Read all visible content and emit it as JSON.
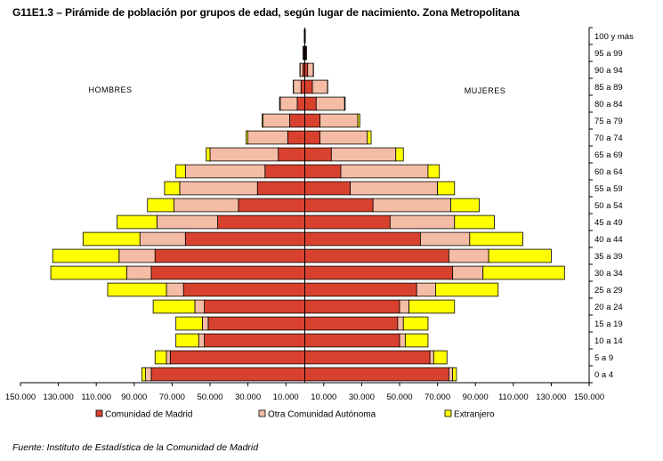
{
  "title": "G11E1.3 – Pirámide de población por grupos de edad, según lugar de nacimiento.  Zona Metropolitana",
  "source": "Fuente: Instituto de Estadística de la Comunidad de Madrid",
  "chart_data": {
    "type": "bar",
    "orientation": "horizontal-population-pyramid",
    "side_labels": {
      "left": "HOMBRES",
      "right": "MUJERES"
    },
    "categories": [
      "0 a 4",
      "5 a 9",
      "10 a 14",
      "15 a 19",
      "20 a 24",
      "25 a 29",
      "30 a 34",
      "35 a 39",
      "40 a 44",
      "45 a 49",
      "50 a 54",
      "55 a 59",
      "60 a 64",
      "65 a 69",
      "70 a 74",
      "75 a 79",
      "80 a 84",
      "85 a 89",
      "90 a 94",
      "95 a 99",
      "100 y más"
    ],
    "x_ticks": [
      "150.000",
      "130.000",
      "110.000",
      "90.000",
      "70.000",
      "50.000",
      "30.000",
      "10.000",
      "10.000",
      "30.000",
      "50.000",
      "70.000",
      "90.000",
      "110.000",
      "130.000",
      "150.000"
    ],
    "xlim": [
      -150000,
      150000
    ],
    "stacked": true,
    "series_colors": [
      "#D9412F",
      "#F5BCA5",
      "#FFFF00"
    ],
    "legend": [
      "Comunidad de Madrid",
      "Otra Comunidad Autónoma",
      "Extranjero"
    ],
    "men": [
      {
        "name": "Comunidad de Madrid",
        "values": [
          81000,
          71000,
          53000,
          51000,
          53000,
          64000,
          81000,
          79000,
          63000,
          46000,
          35000,
          25000,
          21000,
          14000,
          9000,
          8000,
          4000,
          2000,
          1000,
          500,
          200
        ]
      },
      {
        "name": "Otra Comunidad Autónoma",
        "values": [
          3000,
          2000,
          3000,
          3000,
          5000,
          9000,
          13000,
          19000,
          24000,
          32000,
          34000,
          41000,
          42000,
          36000,
          21000,
          14000,
          9000,
          4000,
          1500,
          500,
          100
        ]
      },
      {
        "name": "Extranjero",
        "values": [
          2000,
          6000,
          12000,
          14000,
          22000,
          31000,
          40000,
          35000,
          30000,
          21000,
          14000,
          8000,
          5000,
          2000,
          1000,
          500,
          300,
          100,
          100,
          0,
          0
        ]
      }
    ],
    "women": [
      {
        "name": "Comunidad de Madrid",
        "values": [
          76000,
          66000,
          50000,
          49000,
          50000,
          59000,
          78000,
          76000,
          61000,
          45000,
          36000,
          24000,
          19000,
          14000,
          8000,
          8000,
          6000,
          4000,
          1500,
          500,
          200
        ]
      },
      {
        "name": "Otra Comunidad Autónoma",
        "values": [
          2000,
          2000,
          3000,
          3000,
          5000,
          10000,
          16000,
          21000,
          26000,
          34000,
          41000,
          46000,
          46000,
          34000,
          25000,
          20000,
          15000,
          8000,
          3000,
          500,
          100
        ]
      },
      {
        "name": "Extranjero",
        "values": [
          2000,
          7000,
          12000,
          13000,
          24000,
          33000,
          43000,
          33000,
          28000,
          21000,
          15000,
          9000,
          6000,
          4000,
          2000,
          1000,
          300,
          100,
          100,
          0,
          0
        ]
      }
    ]
  }
}
